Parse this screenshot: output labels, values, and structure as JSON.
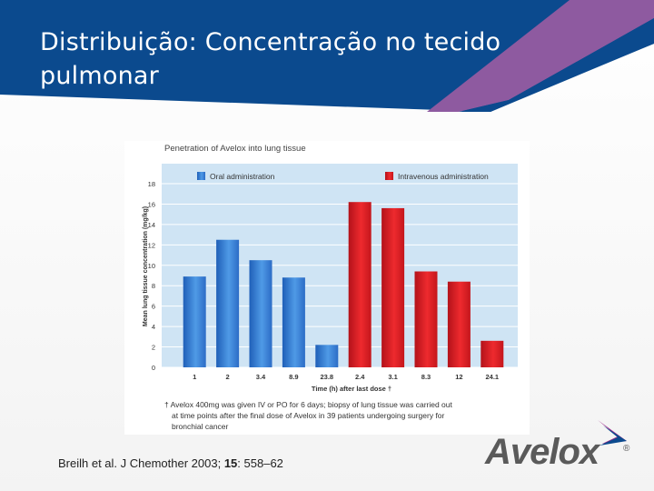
{
  "slide": {
    "title": "Distribuição: Concentração no tecido pulmonar",
    "citation_prefix": "Breilh et al. J Chemother 2003; ",
    "citation_volume": "15",
    "citation_suffix": ": 558–62",
    "logo_text": "Avelox",
    "logo_reg": "®"
  },
  "colors": {
    "header_blue": "#0b4a8e",
    "stripe_purple": "#8e5aa0",
    "plot_bg": "#cfe4f4",
    "oral_blue": "#3b7fd6",
    "iv_red": "#d61c22",
    "logo_text": "#5a5a5a",
    "logo_accent": "#9b2a8a"
  },
  "chart_data": {
    "type": "bar",
    "title": "Penetration of Avelox into lung tissue",
    "xlabel": "Time (h) after last dose †",
    "ylabel": "Mean lung tissue concentration (mg/kg)",
    "ylim": [
      0,
      18
    ],
    "yticks": [
      "0",
      "2",
      "4",
      "6",
      "8",
      "10",
      "12",
      "14",
      "16",
      "18"
    ],
    "categories": [
      "1",
      "2",
      "3.4",
      "8.9",
      "23.8",
      "2.4",
      "3.1",
      "8.3",
      "12",
      "24.1"
    ],
    "series": [
      {
        "name": "Oral administration",
        "color": "#3b7fd6",
        "values": [
          8.9,
          12.5,
          10.5,
          8.8,
          2.2,
          null,
          null,
          null,
          null,
          null
        ]
      },
      {
        "name": "Intravenous administration",
        "color": "#d61c22",
        "values": [
          null,
          null,
          null,
          null,
          null,
          16.2,
          15.6,
          9.4,
          8.4,
          2.6
        ]
      }
    ],
    "footnote": [
      "† Avelox 400mg was given IV or PO for 6 days; biopsy of lung tissue was carried out",
      "at time points after the final dose of Avelox in 39 patients undergoing surgery for",
      "bronchial cancer"
    ],
    "grid": true,
    "legend": "top"
  }
}
